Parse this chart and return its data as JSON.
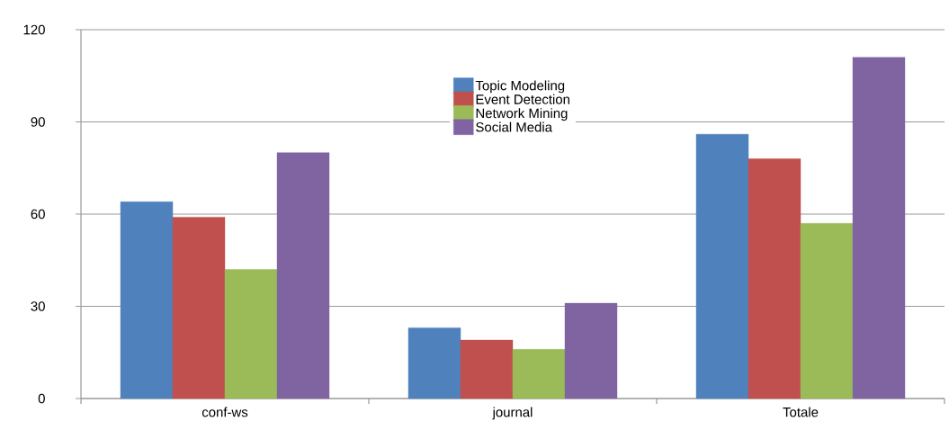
{
  "chart_data": {
    "type": "bar",
    "categories": [
      "conf-ws",
      "journal",
      "Totale"
    ],
    "series": [
      {
        "name": "Topic Modeling",
        "color": "#4f81bd",
        "values": [
          64,
          23,
          86
        ]
      },
      {
        "name": "Event Detection",
        "color": "#c0504d",
        "values": [
          59,
          19,
          78
        ]
      },
      {
        "name": "Network Mining",
        "color": "#9bbb59",
        "values": [
          42,
          16,
          57
        ]
      },
      {
        "name": "Social Media",
        "color": "#8064a2",
        "values": [
          80,
          31,
          111
        ]
      }
    ],
    "ylim": [
      0,
      120
    ],
    "yticks": [
      0,
      30,
      60,
      90,
      120
    ],
    "grid": "y",
    "legend": "top"
  }
}
